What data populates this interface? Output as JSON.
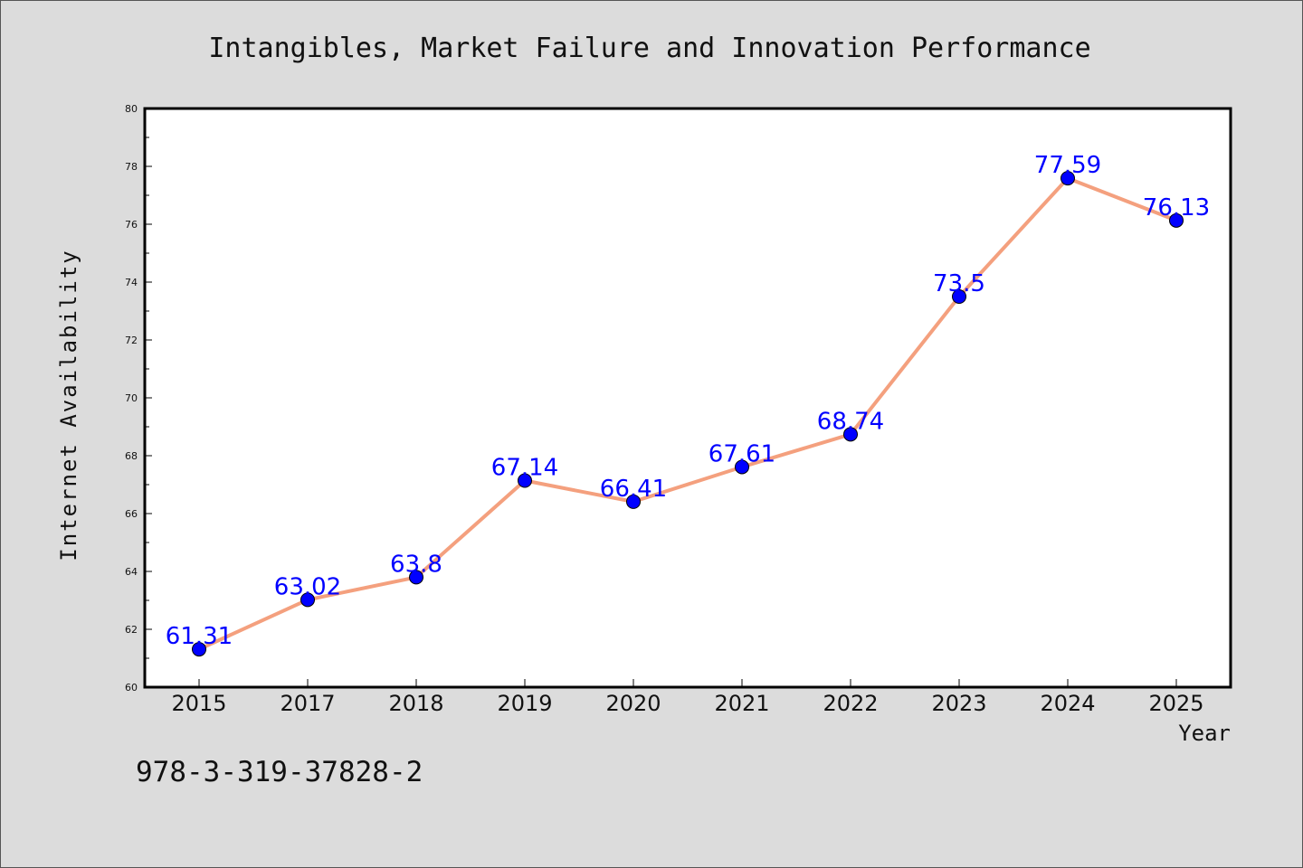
{
  "chart_data": {
    "type": "line",
    "title": "Intangibles, Market Failure and Innovation Performance",
    "xlabel": "Year",
    "ylabel": "Internet Availability",
    "categories": [
      "2015",
      "2017",
      "2018",
      "2019",
      "2020",
      "2021",
      "2022",
      "2023",
      "2024",
      "2025"
    ],
    "series": [
      {
        "values": [
          61.31,
          63.02,
          63.8,
          67.14,
          66.41,
          67.61,
          68.74,
          73.5,
          77.59,
          76.13
        ],
        "data_labels": [
          "61.31",
          "63.02",
          "63.8",
          "67.14",
          "66.41",
          "67.61",
          "68.74",
          "73.5",
          "77.59",
          "76.13"
        ],
        "line_color": "#f4a07e",
        "marker_color": "#0000ff",
        "label_color": "#0000ff"
      }
    ],
    "ylim": [
      60,
      80
    ],
    "yticks": [
      "60",
      "62",
      "64",
      "66",
      "68",
      "70",
      "72",
      "74",
      "76",
      "78",
      "80"
    ],
    "grid": false,
    "legend": "none"
  },
  "footer": {
    "isbn": "978-3-319-37828-2"
  },
  "colors": {
    "background": "#dcdcdc",
    "plot_background": "#ffffff",
    "axis": "#000000"
  }
}
